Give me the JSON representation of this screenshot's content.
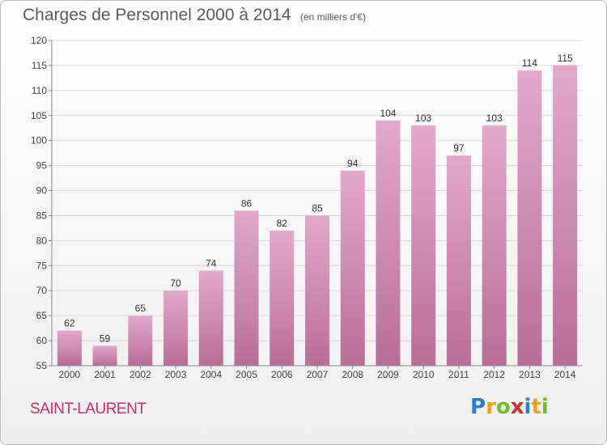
{
  "header": {
    "title": "Charges de Personnel 2000 à 2014",
    "subtitle": "(en milliers d'€)"
  },
  "footer": {
    "place": "SAINT-LAURENT",
    "logo": {
      "letters": [
        "P",
        "r",
        "o",
        "x",
        "i",
        "t",
        "i"
      ],
      "colors": [
        "#2e7fc4",
        "#f0a020",
        "#7ab82e",
        "#c83232",
        "#2e7fc4",
        "#f0a020",
        "#7ab82e"
      ]
    }
  },
  "chart_data": {
    "type": "bar",
    "categories": [
      "2000",
      "2001",
      "2002",
      "2003",
      "2004",
      "2005",
      "2006",
      "2007",
      "2008",
      "2009",
      "2010",
      "2011",
      "2012",
      "2013",
      "2014"
    ],
    "values": [
      62,
      59,
      65,
      70,
      74,
      86,
      82,
      85,
      94,
      104,
      103,
      97,
      103,
      114,
      115
    ],
    "title": "Charges de Personnel 2000 à 2014",
    "ylim": [
      55,
      120
    ],
    "yticks": [
      55,
      60,
      65,
      70,
      75,
      80,
      85,
      90,
      95,
      100,
      105,
      110,
      115,
      120
    ],
    "grid": true,
    "bar_color_top": "#e3a9cd",
    "bar_color_bottom": "#b76e98",
    "grid_color": "#d9d9d9"
  }
}
